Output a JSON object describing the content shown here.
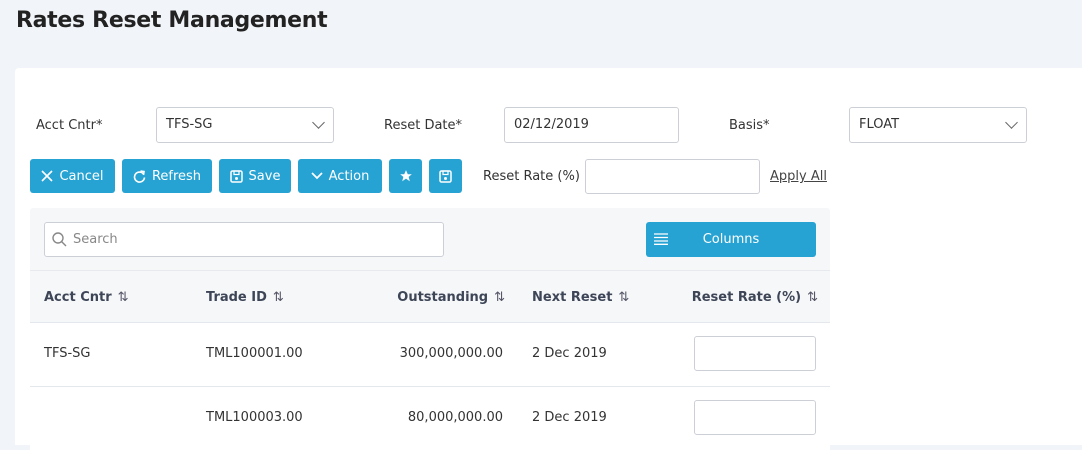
{
  "page": {
    "title": "Rates Reset Management"
  },
  "filters": {
    "acct_cntr": {
      "label": "Acct Cntr*",
      "value": "TFS-SG"
    },
    "reset_date": {
      "label": "Reset Date*",
      "value": "02/12/2019"
    },
    "basis": {
      "label": "Basis*",
      "value": "FLOAT"
    }
  },
  "toolbar": {
    "cancel": "Cancel",
    "refresh": "Refresh",
    "save": "Save",
    "action": "Action",
    "reset_rate_label": "Reset Rate (%)",
    "reset_rate_value": "",
    "apply_all": "Apply All"
  },
  "grid": {
    "search_placeholder": "Search",
    "columns_button": "Columns",
    "headers": [
      "Acct Cntr",
      "Trade ID",
      "Outstanding",
      "Next Reset",
      "Reset Rate (%)"
    ],
    "sort_glyph": "⇅",
    "rows": [
      {
        "acct_cntr": "TFS-SG",
        "trade_id": "TML100001.00",
        "outstanding": "300,000,000.00",
        "next_reset": "2 Dec 2019",
        "reset_rate": ""
      },
      {
        "acct_cntr": "",
        "trade_id": "TML100003.00",
        "outstanding": "80,000,000.00",
        "next_reset": "2 Dec 2019",
        "reset_rate": ""
      }
    ]
  },
  "colors": {
    "accent": "#27a3d3",
    "page_bg": "#f1f4f8",
    "panel_bg": "#f5f7f9"
  }
}
